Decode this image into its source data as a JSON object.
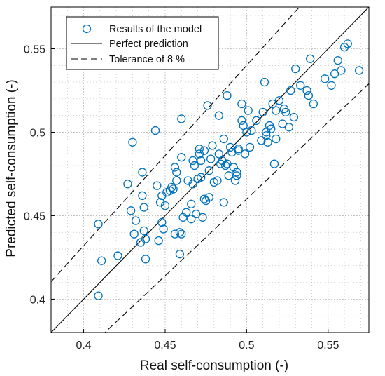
{
  "chart_data": {
    "type": "scatter",
    "xlabel": "Real self-consumption (-)",
    "ylabel": "Predicted self-consumption (-)",
    "xlim": [
      0.38,
      0.575
    ],
    "ylim": [
      0.38,
      0.575
    ],
    "xticks": [
      0.4,
      0.45,
      0.5,
      0.55
    ],
    "yticks": [
      0.4,
      0.45,
      0.5,
      0.55
    ],
    "xtick_labels": [
      "0.4",
      "0.45",
      "0.5",
      "0.55"
    ],
    "ytick_labels": [
      "0.4",
      "0.45",
      "0.5",
      "0.55"
    ],
    "grid": true,
    "minor_grid": true,
    "legend_position": "top-left",
    "tolerance": 0.08,
    "colors": {
      "points": "#0072BD",
      "lines": "#000000",
      "grid": "#b8b8b8"
    },
    "legend": [
      {
        "label": "Results of the model",
        "style": "marker"
      },
      {
        "label": "Perfect prediction",
        "style": "solid"
      },
      {
        "label": "Tolerance of 8 %",
        "style": "dashed"
      }
    ],
    "points": [
      [
        0.409,
        0.445
      ],
      [
        0.409,
        0.402
      ],
      [
        0.411,
        0.423
      ],
      [
        0.421,
        0.426
      ],
      [
        0.427,
        0.469
      ],
      [
        0.429,
        0.453
      ],
      [
        0.43,
        0.494
      ],
      [
        0.431,
        0.439
      ],
      [
        0.432,
        0.447
      ],
      [
        0.435,
        0.434
      ],
      [
        0.436,
        0.462
      ],
      [
        0.436,
        0.476
      ],
      [
        0.437,
        0.455
      ],
      [
        0.437,
        0.441
      ],
      [
        0.438,
        0.436
      ],
      [
        0.438,
        0.424
      ],
      [
        0.444,
        0.501
      ],
      [
        0.445,
        0.468
      ],
      [
        0.446,
        0.435
      ],
      [
        0.447,
        0.458
      ],
      [
        0.448,
        0.446
      ],
      [
        0.448,
        0.462
      ],
      [
        0.449,
        0.442
      ],
      [
        0.45,
        0.456
      ],
      [
        0.451,
        0.464
      ],
      [
        0.453,
        0.465
      ],
      [
        0.454,
        0.467
      ],
      [
        0.455,
        0.466
      ],
      [
        0.456,
        0.439
      ],
      [
        0.456,
        0.479
      ],
      [
        0.457,
        0.476
      ],
      [
        0.457,
        0.471
      ],
      [
        0.459,
        0.427
      ],
      [
        0.459,
        0.44
      ],
      [
        0.46,
        0.439
      ],
      [
        0.46,
        0.508
      ],
      [
        0.46,
        0.485
      ],
      [
        0.461,
        0.449
      ],
      [
        0.463,
        0.452
      ],
      [
        0.464,
        0.471
      ],
      [
        0.466,
        0.448
      ],
      [
        0.466,
        0.457
      ],
      [
        0.467,
        0.483
      ],
      [
        0.467,
        0.469
      ],
      [
        0.468,
        0.48
      ],
      [
        0.469,
        0.451
      ],
      [
        0.47,
        0.472
      ],
      [
        0.471,
        0.49
      ],
      [
        0.471,
        0.487
      ],
      [
        0.472,
        0.473
      ],
      [
        0.472,
        0.483
      ],
      [
        0.473,
        0.449
      ],
      [
        0.474,
        0.46
      ],
      [
        0.474,
        0.489
      ],
      [
        0.475,
        0.459
      ],
      [
        0.476,
        0.516
      ],
      [
        0.477,
        0.461
      ],
      [
        0.477,
        0.477
      ],
      [
        0.478,
        0.484
      ],
      [
        0.479,
        0.492
      ],
      [
        0.48,
        0.47
      ],
      [
        0.482,
        0.471
      ],
      [
        0.483,
        0.51
      ],
      [
        0.483,
        0.487
      ],
      [
        0.484,
        0.481
      ],
      [
        0.485,
        0.483
      ],
      [
        0.486,
        0.496
      ],
      [
        0.486,
        0.458
      ],
      [
        0.487,
        0.48
      ],
      [
        0.488,
        0.522
      ],
      [
        0.488,
        0.481
      ],
      [
        0.489,
        0.474
      ],
      [
        0.49,
        0.491
      ],
      [
        0.491,
        0.488
      ],
      [
        0.492,
        0.479
      ],
      [
        0.493,
        0.471
      ],
      [
        0.494,
        0.474
      ],
      [
        0.494,
        0.476
      ],
      [
        0.495,
        0.49
      ],
      [
        0.495,
        0.489
      ],
      [
        0.497,
        0.507
      ],
      [
        0.497,
        0.517
      ],
      [
        0.498,
        0.504
      ],
      [
        0.499,
        0.487
      ],
      [
        0.5,
        0.5
      ],
      [
        0.501,
        0.513
      ],
      [
        0.502,
        0.491
      ],
      [
        0.503,
        0.501
      ],
      [
        0.506,
        0.507
      ],
      [
        0.509,
        0.495
      ],
      [
        0.51,
        0.512
      ],
      [
        0.511,
        0.53
      ],
      [
        0.512,
        0.5
      ],
      [
        0.512,
        0.498
      ],
      [
        0.513,
        0.494
      ],
      [
        0.514,
        0.504
      ],
      [
        0.515,
        0.502
      ],
      [
        0.516,
        0.517
      ],
      [
        0.517,
        0.481
      ],
      [
        0.518,
        0.513
      ],
      [
        0.518,
        0.496
      ],
      [
        0.52,
        0.519
      ],
      [
        0.522,
        0.505
      ],
      [
        0.523,
        0.514
      ],
      [
        0.524,
        0.512
      ],
      [
        0.526,
        0.503
      ],
      [
        0.527,
        0.525
      ],
      [
        0.529,
        0.509
      ],
      [
        0.53,
        0.538
      ],
      [
        0.533,
        0.528
      ],
      [
        0.537,
        0.525
      ],
      [
        0.538,
        0.522
      ],
      [
        0.539,
        0.544
      ],
      [
        0.541,
        0.517
      ],
      [
        0.548,
        0.532
      ],
      [
        0.552,
        0.528
      ],
      [
        0.554,
        0.535
      ],
      [
        0.556,
        0.543
      ],
      [
        0.558,
        0.537
      ],
      [
        0.56,
        0.551
      ],
      [
        0.562,
        0.553
      ],
      [
        0.569,
        0.537
      ]
    ]
  }
}
